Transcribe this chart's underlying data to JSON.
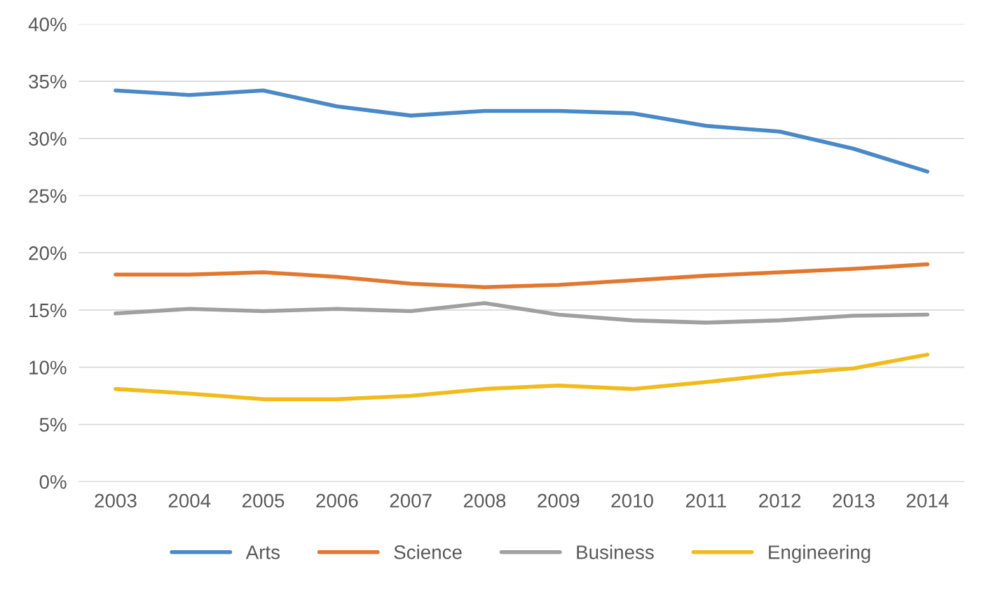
{
  "chart_data": {
    "type": "line",
    "categories": [
      "2003",
      "2004",
      "2005",
      "2006",
      "2007",
      "2008",
      "2009",
      "2010",
      "2011",
      "2012",
      "2013",
      "2014"
    ],
    "series": [
      {
        "name": "Arts",
        "color": "#4a89c8",
        "values": [
          34.2,
          33.8,
          34.2,
          32.8,
          32.0,
          32.4,
          32.4,
          32.2,
          31.1,
          30.6,
          29.1,
          27.1
        ]
      },
      {
        "name": "Science",
        "color": "#e2772f",
        "values": [
          18.1,
          18.1,
          18.3,
          17.9,
          17.3,
          17.0,
          17.2,
          17.6,
          18.0,
          18.3,
          18.6,
          19.0
        ]
      },
      {
        "name": "Business",
        "color": "#a0a0a0",
        "values": [
          14.7,
          15.1,
          14.9,
          15.1,
          14.9,
          15.6,
          14.6,
          14.1,
          13.9,
          14.1,
          14.5,
          14.6
        ]
      },
      {
        "name": "Engineering",
        "color": "#f2bb1c",
        "values": [
          8.1,
          7.7,
          7.2,
          7.2,
          7.5,
          8.1,
          8.4,
          8.1,
          8.7,
          9.4,
          9.9,
          11.1
        ]
      }
    ],
    "ylim": [
      0,
      40
    ],
    "yticks": [
      {
        "value": 0,
        "label": "0%"
      },
      {
        "value": 5,
        "label": "5%"
      },
      {
        "value": 10,
        "label": "10%"
      },
      {
        "value": 15,
        "label": "15%"
      },
      {
        "value": 20,
        "label": "20%"
      },
      {
        "value": 25,
        "label": "25%"
      },
      {
        "value": 30,
        "label": "30%"
      },
      {
        "value": 35,
        "label": "35%"
      },
      {
        "value": 40,
        "label": "40%"
      }
    ],
    "grid": "y",
    "legend": "bottom",
    "marker": "none",
    "line_style": "solid"
  }
}
